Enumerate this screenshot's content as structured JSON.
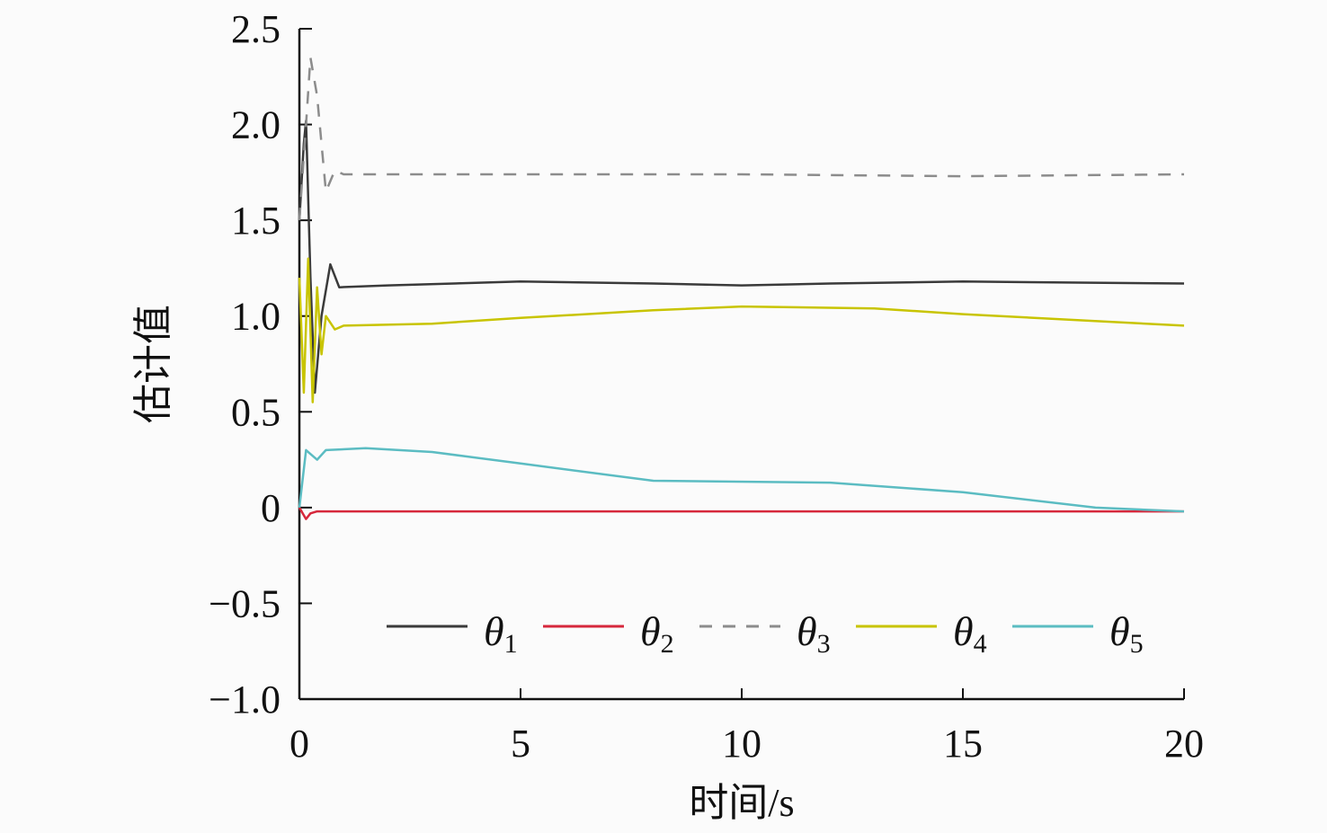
{
  "chart_data": {
    "type": "line",
    "xlabel": "时间/s",
    "ylabel": "估计值",
    "xlim": [
      0,
      20
    ],
    "ylim": [
      -1.0,
      2.5
    ],
    "xticks": [
      0,
      5,
      10,
      15,
      20
    ],
    "xtick_labels": [
      "0",
      "5",
      "10",
      "15",
      "20"
    ],
    "yticks": [
      -1.0,
      -0.5,
      0,
      0.5,
      1.0,
      1.5,
      2.0,
      2.5
    ],
    "ytick_labels": [
      "−1.0",
      "−0.5",
      "0",
      "0.5",
      "1.0",
      "1.5",
      "2.0",
      "2.5"
    ],
    "grid": false,
    "legend_placement": "bottom-right",
    "series": [
      {
        "name": "θ1",
        "sub": "1",
        "color": "#3a3a3a",
        "dash": false,
        "x": [
          0,
          0.1,
          0.15,
          0.25,
          0.35,
          0.5,
          0.7,
          0.9,
          2,
          5,
          8,
          10,
          12,
          15,
          20
        ],
        "y": [
          1.5,
          1.9,
          2.02,
          1.2,
          0.6,
          1.0,
          1.27,
          1.15,
          1.16,
          1.18,
          1.17,
          1.16,
          1.17,
          1.18,
          1.17
        ]
      },
      {
        "name": "θ2",
        "sub": "2",
        "color": "#d6283c",
        "dash": false,
        "x": [
          0,
          0.1,
          0.15,
          0.25,
          0.4,
          1,
          5,
          10,
          15,
          20
        ],
        "y": [
          0,
          -0.04,
          -0.06,
          -0.03,
          -0.02,
          -0.02,
          -0.02,
          -0.02,
          -0.02,
          -0.02
        ]
      },
      {
        "name": "θ3",
        "sub": "3",
        "color": "#8c8c8c",
        "dash": true,
        "x": [
          0,
          0.15,
          0.25,
          0.4,
          0.6,
          0.8,
          1,
          5,
          10,
          15,
          20
        ],
        "y": [
          1.5,
          2.0,
          2.35,
          2.15,
          1.65,
          1.76,
          1.74,
          1.74,
          1.74,
          1.73,
          1.74
        ]
      },
      {
        "name": "θ4",
        "sub": "4",
        "color": "#c8c400",
        "dash": false,
        "x": [
          0,
          0.1,
          0.2,
          0.3,
          0.4,
          0.5,
          0.6,
          0.8,
          1,
          3,
          5,
          8,
          10,
          13,
          15,
          20
        ],
        "y": [
          1.2,
          0.6,
          1.3,
          0.55,
          1.15,
          0.8,
          1.0,
          0.93,
          0.95,
          0.96,
          0.99,
          1.03,
          1.05,
          1.04,
          1.01,
          0.95
        ]
      },
      {
        "name": "θ5",
        "sub": "5",
        "color": "#5bbcc2",
        "dash": false,
        "x": [
          0,
          0.15,
          0.4,
          0.6,
          1.5,
          3,
          5,
          8,
          12,
          15,
          18,
          20
        ],
        "y": [
          0.0,
          0.3,
          0.25,
          0.3,
          0.31,
          0.29,
          0.23,
          0.14,
          0.13,
          0.08,
          0.0,
          -0.02
        ]
      }
    ]
  }
}
